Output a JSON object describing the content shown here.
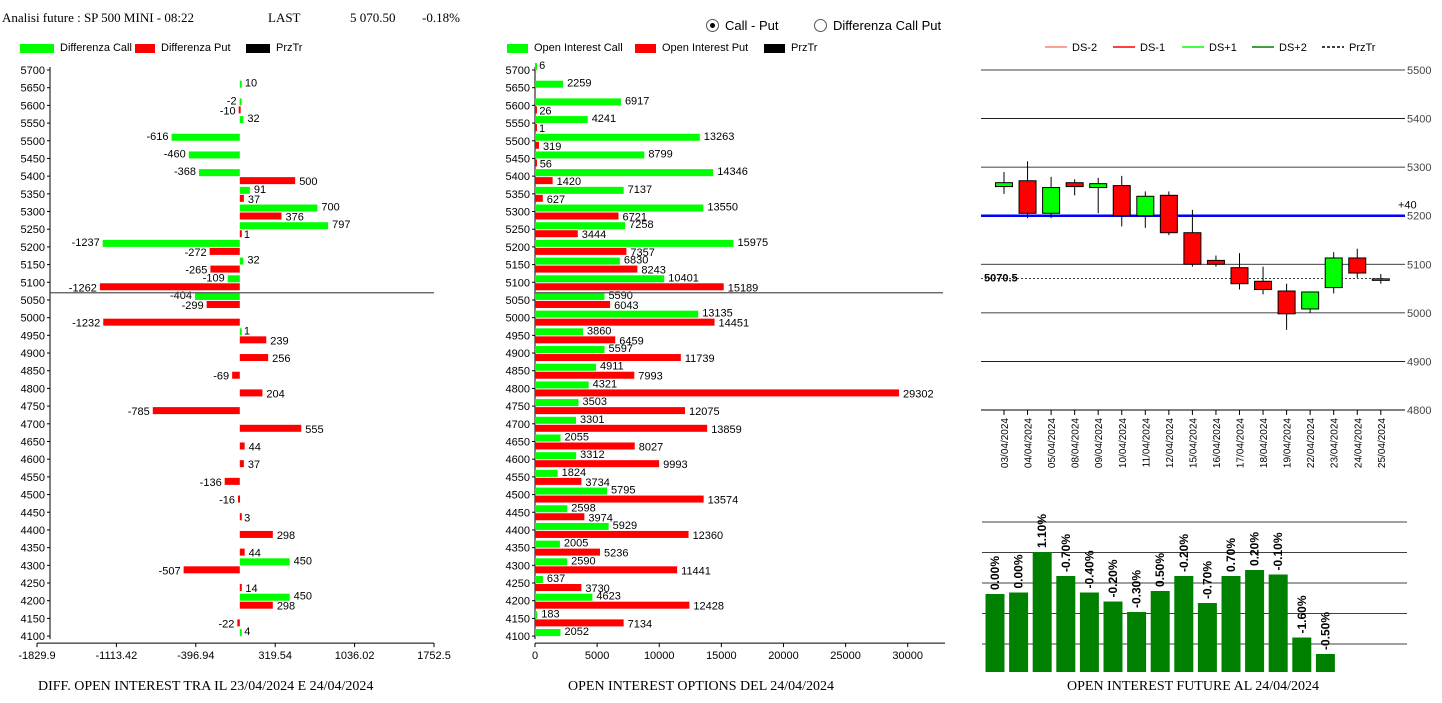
{
  "header": {
    "title": "Analisi future : SP 500 MINI - 08:22",
    "last_label": "LAST",
    "last_value": "5 070.50",
    "change": "-0.18%"
  },
  "mode": {
    "option1": "Call - Put",
    "option2": "Differenza Call Put",
    "selected": "Call - Put"
  },
  "colors": {
    "green": "#00ff00",
    "red": "#ff0000",
    "black": "#000000",
    "blue": "#0000ff",
    "darkgreen": "#008000",
    "salmon": "#fa8072"
  },
  "strikes": [
    "5700",
    "5650",
    "5600",
    "5550",
    "5500",
    "5450",
    "5400",
    "5350",
    "5300",
    "5250",
    "5200",
    "5150",
    "5100",
    "5050",
    "5000",
    "4950",
    "4900",
    "4850",
    "4800",
    "4750",
    "4700",
    "4650",
    "4600",
    "4550",
    "4500",
    "4450",
    "4400",
    "4350",
    "4300",
    "4250",
    "4200",
    "4150",
    "4100"
  ],
  "chart_data": [
    {
      "type": "bar",
      "title": "DIFF. OPEN INTEREST TRA IL 23/04/2024 E 24/04/2024",
      "legend": [
        "Differenza Call",
        "Differenza Put",
        "PrzTr"
      ],
      "categories": [
        "5700",
        "5650",
        "5600",
        "5550",
        "5500",
        "5450",
        "5400",
        "5350",
        "5300",
        "5250",
        "5200",
        "5150",
        "5100",
        "5050",
        "5000",
        "4950",
        "4900",
        "4850",
        "4800",
        "4750",
        "4700",
        "4650",
        "4600",
        "4550",
        "4500",
        "4450",
        "4400",
        "4350",
        "4300",
        "4250",
        "4200",
        "4150",
        "4100"
      ],
      "series": [
        {
          "name": "Differenza Call",
          "values": [
            null,
            10,
            -2,
            32,
            -616,
            -460,
            -368,
            91,
            700,
            797,
            -1237,
            32,
            -109,
            -404,
            null,
            1,
            null,
            null,
            null,
            null,
            null,
            null,
            null,
            null,
            null,
            null,
            null,
            null,
            450,
            null,
            450,
            null,
            4
          ]
        },
        {
          "name": "Differenza Put",
          "values": [
            null,
            null,
            -10,
            null,
            null,
            null,
            500,
            37,
            376,
            1,
            -272,
            -265,
            -1262,
            -299,
            -1232,
            239,
            256,
            -69,
            204,
            -785,
            555,
            44,
            37,
            -136,
            -16,
            3,
            298,
            44,
            -507,
            14,
            298,
            -22,
            null
          ]
        }
      ],
      "x_ticks": [
        "-1829.9",
        "-1113.42",
        "-396.94",
        "319.54",
        "1036.02",
        "1752.5"
      ],
      "xlim": [
        -1829.9,
        1752.5
      ],
      "prztr": "5070.5"
    },
    {
      "type": "bar",
      "title": "OPEN INTEREST OPTIONS DEL 24/04/2024",
      "legend": [
        "Open Interest Call",
        "Open Interest Put",
        "PrzTr"
      ],
      "categories": [
        "5700",
        "5650",
        "5600",
        "5550",
        "5500",
        "5450",
        "5400",
        "5350",
        "5300",
        "5250",
        "5200",
        "5150",
        "5100",
        "5050",
        "5000",
        "4950",
        "4900",
        "4850",
        "4800",
        "4750",
        "4700",
        "4650",
        "4600",
        "4550",
        "4500",
        "4450",
        "4400",
        "4350",
        "4300",
        "4250",
        "4200",
        "4150",
        "4100"
      ],
      "series": [
        {
          "name": "Open Interest Call",
          "values": [
            6,
            2259,
            6917,
            4241,
            13263,
            8799,
            14346,
            7137,
            13550,
            7258,
            15975,
            6830,
            10401,
            5590,
            13135,
            3860,
            5597,
            4911,
            4321,
            3503,
            3301,
            2055,
            3312,
            1824,
            5795,
            2598,
            5929,
            2005,
            2590,
            637,
            4623,
            183,
            2052
          ]
        },
        {
          "name": "Open Interest Put",
          "values": [
            null,
            null,
            26,
            1,
            319,
            56,
            1420,
            627,
            6721,
            3444,
            7357,
            8243,
            15189,
            6043,
            14451,
            6459,
            11739,
            7993,
            29302,
            12075,
            13859,
            8027,
            9993,
            3734,
            13574,
            3974,
            12360,
            5236,
            11441,
            3730,
            12428,
            7134,
            null
          ]
        }
      ],
      "x_ticks": [
        "0",
        "5000",
        "10000",
        "15000",
        "20000",
        "25000",
        "30000"
      ],
      "xlim": [
        0,
        33000
      ],
      "prztr": "5070.5"
    },
    {
      "type": "candlestick",
      "legend": [
        "DS-2",
        "DS-1",
        "DS+1",
        "DS+2",
        "PrzTr"
      ],
      "dates": [
        "03/04/2024",
        "04/04/2024",
        "05/04/2024",
        "08/04/2024",
        "09/04/2024",
        "10/04/2024",
        "11/04/2024",
        "12/04/2024",
        "15/04/2024",
        "16/04/2024",
        "17/04/2024",
        "18/04/2024",
        "19/04/2024",
        "22/04/2024",
        "23/04/2024",
        "24/04/2024",
        "25/04/2024"
      ],
      "ohlc": [
        [
          5260,
          5290,
          5245,
          5268
        ],
        [
          5272,
          5312,
          5195,
          5205
        ],
        [
          5205,
          5280,
          5195,
          5258
        ],
        [
          5268,
          5275,
          5242,
          5260
        ],
        [
          5258,
          5278,
          5205,
          5266
        ],
        [
          5262,
          5282,
          5178,
          5200
        ],
        [
          5200,
          5250,
          5175,
          5240
        ],
        [
          5242,
          5250,
          5160,
          5165
        ],
        [
          5165,
          5212,
          5095,
          5100
        ],
        [
          5108,
          5118,
          5095,
          5100
        ],
        [
          5093,
          5123,
          5048,
          5060
        ],
        [
          5065,
          5095,
          5038,
          5048
        ],
        [
          5045,
          5060,
          4965,
          4998
        ],
        [
          5008,
          5040,
          5000,
          5043
        ],
        [
          5052,
          5125,
          5040,
          5113
        ],
        [
          5113,
          5132,
          5072,
          5082
        ],
        [
          5070,
          5080,
          5060,
          5070
        ]
      ],
      "y_ticks": [
        "5500",
        "5400",
        "5300",
        "5200",
        "5100",
        "5000",
        "4900",
        "4800"
      ],
      "ylim": [
        4800,
        5500
      ],
      "blue_line": 5200,
      "blue_label": "+40",
      "prztr": 5070.5,
      "prztr_label": "5070.5"
    },
    {
      "type": "bar",
      "title": "OPEN INTEREST FUTURE AL 24/04/2024",
      "labels": [
        "0.00%",
        "0.00%",
        "1.10%",
        "-0.70%",
        "-0.40%",
        "-0.20%",
        "-0.30%",
        "0.50%",
        "-0.20%",
        "-0.70%",
        "0.70%",
        "0.20%",
        "-0.10%",
        "-1.60%",
        "-0.50%"
      ],
      "values": [
        0.52,
        0.53,
        0.8,
        0.64,
        0.53,
        0.47,
        0.4,
        0.54,
        0.64,
        0.46,
        0.64,
        0.68,
        0.65,
        0.23,
        0.12
      ]
    }
  ]
}
